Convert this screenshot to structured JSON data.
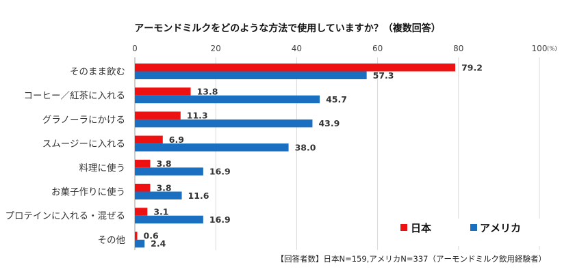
{
  "chart_data": {
    "type": "bar",
    "orientation": "horizontal",
    "title": "アーモンドミルクをどのような方法で使用していますか？（複数回答）",
    "categories": [
      "そのまま飲む",
      "コーヒー／紅茶に入れる",
      "グラノーラにかける",
      "スムージーに入れる",
      "料理に使う",
      "お菓子作りに使う",
      "プロテインに入れる・混ぜる",
      "その他"
    ],
    "series": [
      {
        "name": "日本",
        "color": "#ee1111",
        "values": [
          79.2,
          13.8,
          11.3,
          6.9,
          3.8,
          3.8,
          3.1,
          0.6
        ]
      },
      {
        "name": "アメリカ",
        "color": "#1a6fc0",
        "values": [
          57.3,
          45.7,
          43.9,
          38.0,
          16.9,
          11.6,
          16.9,
          2.4
        ]
      }
    ],
    "xlim": [
      0,
      100
    ],
    "xticks": [
      0,
      20,
      40,
      60,
      80,
      100
    ],
    "unit_label": "(%)",
    "grid": true,
    "legend": "bottom-right",
    "footnote": "【回答者数】日本N=159,アメリカN=337（アーモンドミルク飲用経験者）"
  }
}
